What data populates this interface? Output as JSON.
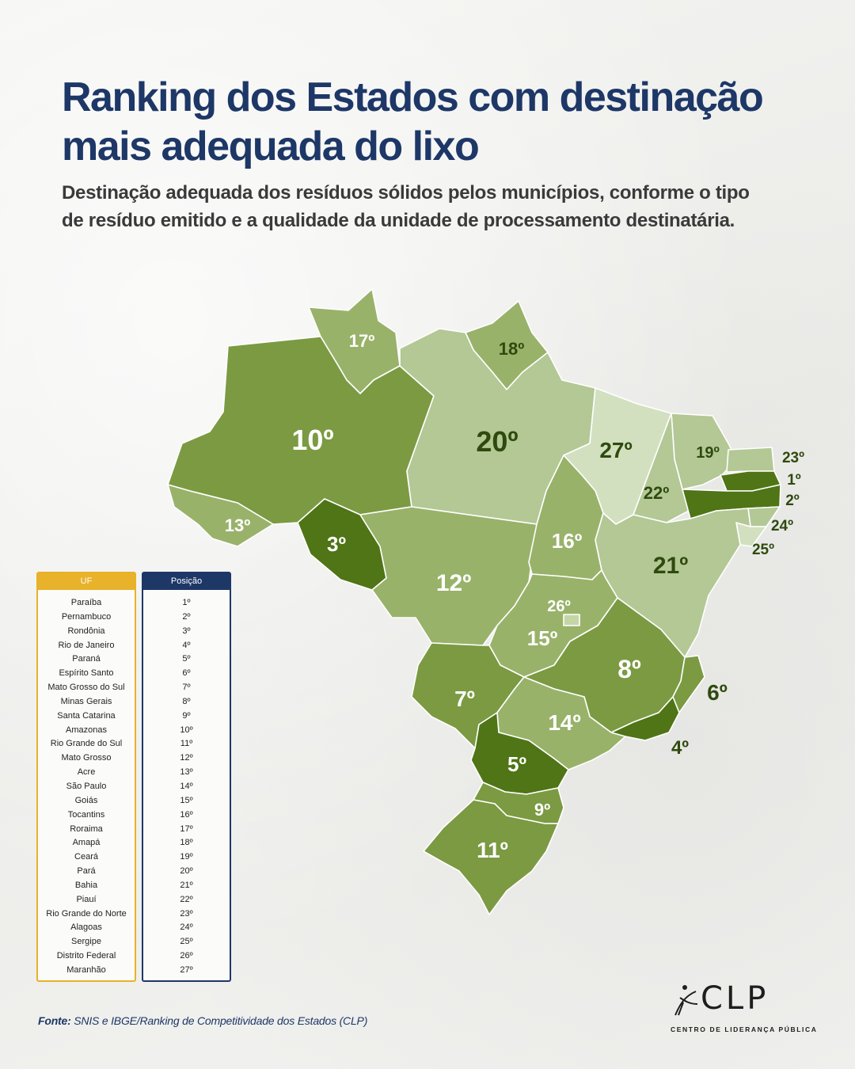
{
  "title": "Ranking dos Estados com destinação mais adequada do lixo",
  "subtitle": "Destinação adequada dos resíduos sólidos pelos municípios, conforme o tipo de resíduo emitido e a qualidade da unidade de processamento destinatária.",
  "map_labels": {
    "rr": "17º",
    "ap": "18º",
    "am": "10º",
    "pa": "20º",
    "ma": "27º",
    "ce": "19º",
    "rn": "23º",
    "pb": "1º",
    "pe": "2º",
    "al": "24º",
    "se": "25º",
    "pi": "22º",
    "ac": "13º",
    "ro": "3º",
    "to": "16º",
    "mt": "12º",
    "ba": "21º",
    "df": "26º",
    "go": "15º",
    "mg": "8º",
    "es": "6º",
    "ms": "7º",
    "sp": "14º",
    "rj": "4º",
    "pr": "5º",
    "sc": "9º",
    "rs": "11º"
  },
  "colors": {
    "rank_1_5": "#4f7516",
    "rank_6_11": "#7b9a42",
    "rank_12_18": "#99b26a",
    "rank_19_24": "#b3c895",
    "rank_25_27": "#d2e0bf",
    "title": "#1d3767",
    "uf_header": "#e8b22a",
    "position_header": "#1d3767"
  },
  "table": {
    "uf_header": "UF",
    "position_header": "Posição",
    "rows": [
      {
        "uf": "Paraíba",
        "pos": "1º"
      },
      {
        "uf": "Pernambuco",
        "pos": "2º"
      },
      {
        "uf": "Rondônia",
        "pos": "3º"
      },
      {
        "uf": "Rio de Janeiro",
        "pos": "4º"
      },
      {
        "uf": "Paraná",
        "pos": "5º"
      },
      {
        "uf": "Espírito Santo",
        "pos": "6º"
      },
      {
        "uf": "Mato Grosso do Sul",
        "pos": "7º"
      },
      {
        "uf": "Minas Gerais",
        "pos": "8º"
      },
      {
        "uf": "Santa Catarina",
        "pos": "9º"
      },
      {
        "uf": "Amazonas",
        "pos": "10º"
      },
      {
        "uf": "Rio Grande do Sul",
        "pos": "11º"
      },
      {
        "uf": "Mato Grosso",
        "pos": "12º"
      },
      {
        "uf": "Acre",
        "pos": "13º"
      },
      {
        "uf": "São Paulo",
        "pos": "14º"
      },
      {
        "uf": "Goiás",
        "pos": "15º"
      },
      {
        "uf": "Tocantins",
        "pos": "16º"
      },
      {
        "uf": "Roraima",
        "pos": "17º"
      },
      {
        "uf": "Amapá",
        "pos": "18º"
      },
      {
        "uf": "Ceará",
        "pos": "19º"
      },
      {
        "uf": "Pará",
        "pos": "20º"
      },
      {
        "uf": "Bahia",
        "pos": "21º"
      },
      {
        "uf": "Piauí",
        "pos": "22º"
      },
      {
        "uf": "Rio Grande do Norte",
        "pos": "23º"
      },
      {
        "uf": "Alagoas",
        "pos": "24º"
      },
      {
        "uf": "Sergipe",
        "pos": "25º"
      },
      {
        "uf": "Distrito Federal",
        "pos": "26º"
      },
      {
        "uf": "Maranhão",
        "pos": "27º"
      }
    ]
  },
  "source": {
    "label": "Fonte:",
    "text": "SNIS e IBGE/Ranking de Competitividade dos Estados (CLP)"
  },
  "logo": {
    "name": "CLP",
    "subtitle": "CENTRO DE LIDERANÇA PÚBLICA"
  }
}
